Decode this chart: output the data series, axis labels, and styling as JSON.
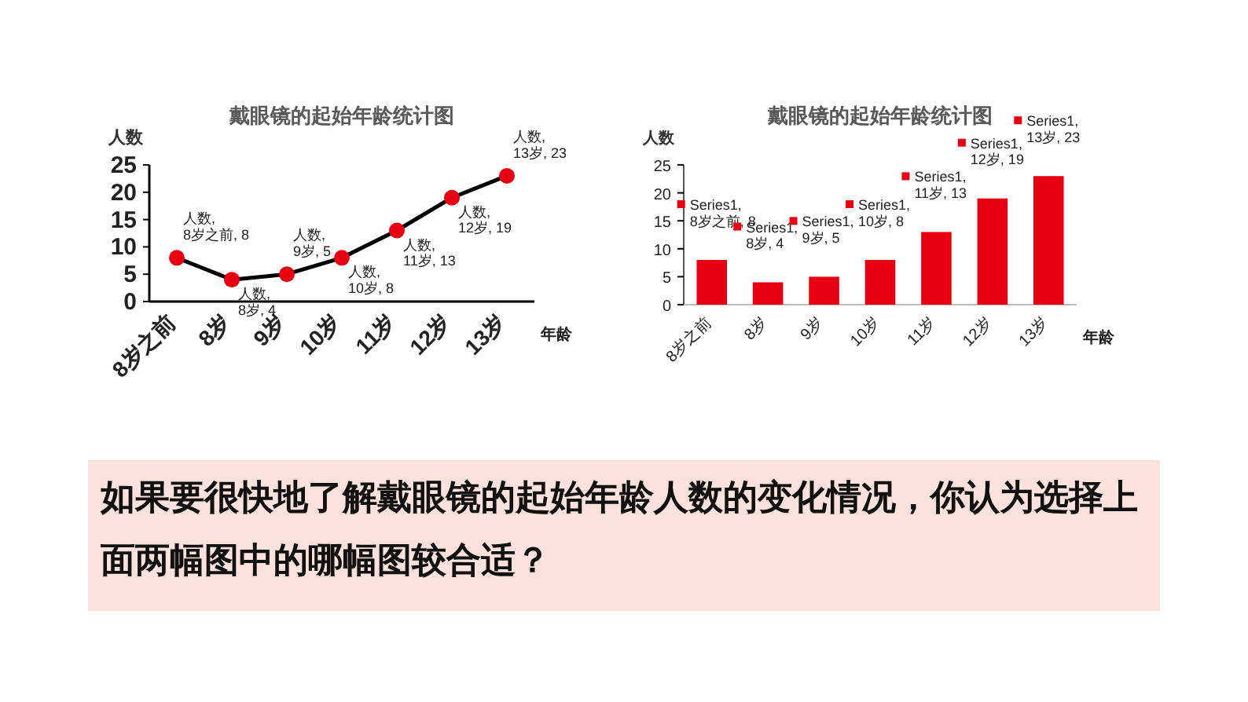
{
  "chart_data": [
    {
      "type": "line",
      "title": "戴眼镜的起始年龄统计图",
      "xlabel": "年龄",
      "ylabel": "人数",
      "categories": [
        "8岁之前",
        "8岁",
        "9岁",
        "10岁",
        "11岁",
        "12岁",
        "13岁"
      ],
      "series": [
        {
          "color": "#000000",
          "colors": [
            "#e60012",
            "#e60012",
            "#e60012",
            "#e60012",
            "#e60012",
            "#e60012",
            "#e60012"
          ],
          "values": [
            8,
            4,
            5,
            8,
            13,
            19,
            23
          ],
          "value_labels": [
            "人数, 8岁之前, 8",
            "人数, 8岁, 4",
            "人数, 9岁, 5",
            "人数, 10岁, 8",
            "人数, 11岁, 13",
            "人数, 12岁, 19",
            "人数, 13岁, 23"
          ]
        }
      ],
      "ylim": [
        0,
        25
      ],
      "yticks": [
        0,
        5,
        10,
        15,
        20,
        25
      ],
      "marker": "circle",
      "line_style": "solid",
      "grid": false
    },
    {
      "type": "bar",
      "title": "戴眼镜的起始年龄统计图",
      "xlabel": "年龄",
      "ylabel": "人数",
      "categories": [
        "8岁之前",
        "8岁",
        "9岁",
        "10岁",
        "11岁",
        "12岁",
        "13岁"
      ],
      "series": [
        {
          "color": "#e60012",
          "values": [
            8,
            4,
            5,
            8,
            13,
            19,
            23
          ],
          "value_labels": [
            "Series1, 8岁之前, 8",
            "Series1, 8岁, 4",
            "Series1, 9岁, 5",
            "Series1, 10岁, 8",
            "Series1, 11岁, 13",
            "Series1, 12岁, 19",
            "Series1, 13岁, 23"
          ]
        }
      ],
      "ylim": [
        0,
        25
      ],
      "yticks": [
        0,
        5,
        10,
        15,
        20,
        25
      ],
      "grid": false
    },
    {
      "type": "other",
      "annotations": [
        "如果要很快地了解戴眼镜的起始年龄人数的变化情况，你认为选择上面两幅图中的哪幅图较合适？"
      ]
    }
  ]
}
